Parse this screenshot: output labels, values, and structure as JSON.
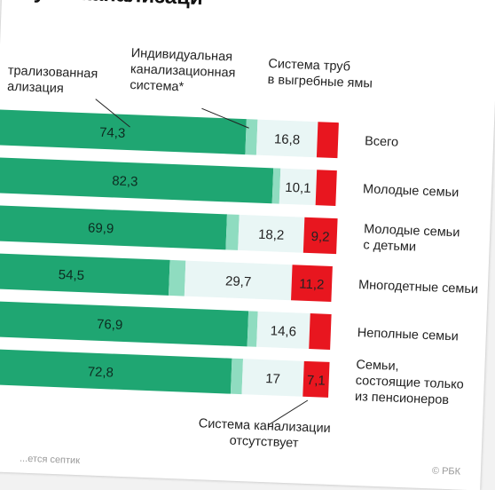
{
  "title": "ступ к канализаци",
  "colors": {
    "central": "#1fa672",
    "individual": "#8fdcc0",
    "pit": "#e9f6f5",
    "none": "#e8161f"
  },
  "labels": {
    "central": [
      "трализованная",
      "ализация"
    ],
    "individual": [
      "Индивидуальная",
      "канализационная",
      "система*"
    ],
    "pit": [
      "Система труб",
      "в выгребные ямы"
    ],
    "none": [
      "Система канализации",
      "отсутствует"
    ]
  },
  "source_note": "...ется септик",
  "brand": "© РБК",
  "chart_data": {
    "type": "bar",
    "orientation": "horizontal",
    "stacked": true,
    "categories": [
      [
        "Всего"
      ],
      [
        "Молодые семьи"
      ],
      [
        "Молодые семьи",
        "с детьми"
      ],
      [
        "Многодетные семьи"
      ],
      [
        "Неполные семьи"
      ],
      [
        "Семьи,",
        "состоящие только",
        "из пенсионеров"
      ]
    ],
    "series": [
      {
        "key": "central",
        "values": [
          74.3,
          82.3,
          69.9,
          54.5,
          76.9,
          72.8
        ],
        "labels": [
          "74,3",
          "82,3",
          "69,9",
          "54,5",
          "76,9",
          "72,8"
        ]
      },
      {
        "key": "individual",
        "values": [
          3.1,
          2.0,
          3.4,
          4.4,
          2.6,
          3.1
        ],
        "labels": [
          "",
          "",
          "",
          "",
          "",
          ""
        ]
      },
      {
        "key": "pit",
        "values": [
          16.8,
          10.1,
          18.2,
          29.7,
          14.6,
          17.0
        ],
        "labels": [
          "16,8",
          "10,1",
          "18,2",
          "29,7",
          "14,6",
          "17"
        ]
      },
      {
        "key": "none",
        "values": [
          5.8,
          5.6,
          9.2,
          11.2,
          5.9,
          7.1
        ],
        "labels": [
          "",
          "",
          "9,2",
          "11,2",
          "",
          "7,1"
        ]
      }
    ],
    "xlim": [
      0,
      100
    ]
  }
}
